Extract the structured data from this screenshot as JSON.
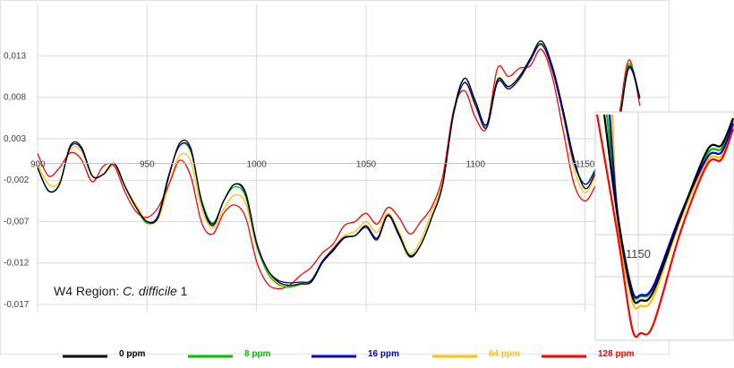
{
  "chart_data": {
    "type": "line",
    "annotation": {
      "prefix": "W4 Region: ",
      "species": "C. difficile",
      "suffix": " 1"
    },
    "xlim": [
      900,
      1180
    ],
    "ylim": [
      -0.017,
      0.0165
    ],
    "x_ticks": [
      900,
      950,
      1000,
      1050,
      1100,
      1150
    ],
    "y_ticks": [
      {
        "value": 0.013,
        "label": "0,013"
      },
      {
        "value": 0.008,
        "label": "0,008"
      },
      {
        "value": 0.003,
        "label": "0,003"
      },
      {
        "value": -0.002,
        "label": "-0,002"
      },
      {
        "value": -0.007,
        "label": "-0,007"
      },
      {
        "value": -0.012,
        "label": "-0,012"
      },
      {
        "value": -0.017,
        "label": "-0,017"
      }
    ],
    "grid": true,
    "legend_position": "bottom",
    "x": [
      900,
      905,
      910,
      915,
      920,
      925,
      930,
      935,
      940,
      945,
      950,
      955,
      960,
      965,
      970,
      975,
      980,
      985,
      990,
      995,
      1000,
      1005,
      1010,
      1015,
      1020,
      1025,
      1030,
      1035,
      1040,
      1045,
      1050,
      1055,
      1060,
      1065,
      1070,
      1075,
      1080,
      1085,
      1090,
      1095,
      1100,
      1105,
      1110,
      1115,
      1120,
      1125,
      1130,
      1135,
      1140,
      1145,
      1150,
      1155,
      1160,
      1165,
      1170,
      1175
    ],
    "series": [
      {
        "name": "0 ppm",
        "color": "#000000",
        "values": [
          -0.0005,
          -0.0033,
          -0.0025,
          0.0022,
          0.002,
          -0.0015,
          -0.0013,
          0.0,
          -0.0028,
          -0.0053,
          -0.007,
          -0.0065,
          -0.0015,
          0.0025,
          0.0018,
          -0.0048,
          -0.0075,
          -0.0045,
          -0.0025,
          -0.0035,
          -0.0095,
          -0.0128,
          -0.0143,
          -0.0147,
          -0.0145,
          -0.0143,
          -0.012,
          -0.0105,
          -0.009,
          -0.0087,
          -0.0075,
          -0.009,
          -0.0062,
          -0.0085,
          -0.0112,
          -0.0098,
          -0.0065,
          -0.0025,
          0.0062,
          0.0103,
          0.0075,
          0.0047,
          0.0101,
          0.0093,
          0.0105,
          0.0127,
          0.0148,
          0.0118,
          0.0065,
          0.0005,
          -0.003,
          -0.001,
          0.0015,
          0.004,
          0.0117,
          0.008
        ]
      },
      {
        "name": "8 ppm",
        "color": "#00c000",
        "values": [
          -0.0005,
          -0.0033,
          -0.0025,
          0.002,
          0.0018,
          -0.0015,
          -0.0013,
          0.0,
          -0.0028,
          -0.0053,
          -0.0072,
          -0.0063,
          -0.0013,
          0.0022,
          0.0014,
          -0.0045,
          -0.0072,
          -0.0045,
          -0.0028,
          -0.004,
          -0.0098,
          -0.0132,
          -0.0146,
          -0.0149,
          -0.0146,
          -0.0142,
          -0.0118,
          -0.0105,
          -0.009,
          -0.0087,
          -0.0077,
          -0.0092,
          -0.0063,
          -0.0087,
          -0.0113,
          -0.0098,
          -0.0065,
          -0.0025,
          0.0063,
          0.0103,
          0.0073,
          0.0045,
          0.01,
          0.009,
          0.0103,
          0.0125,
          0.0145,
          0.0115,
          0.0063,
          0.0003,
          -0.0025,
          -0.0005,
          0.0017,
          0.0043,
          0.012,
          0.008
        ]
      },
      {
        "name": "16 ppm",
        "color": "#0000cc",
        "values": [
          -0.0005,
          -0.0033,
          -0.0025,
          0.002,
          0.0018,
          -0.0015,
          -0.0013,
          0.0,
          -0.0028,
          -0.0053,
          -0.007,
          -0.0063,
          -0.0013,
          0.0022,
          0.0016,
          -0.0047,
          -0.0073,
          -0.0045,
          -0.0025,
          -0.0037,
          -0.0096,
          -0.0128,
          -0.0141,
          -0.0144,
          -0.0143,
          -0.0141,
          -0.0118,
          -0.0103,
          -0.0089,
          -0.0087,
          -0.0077,
          -0.0092,
          -0.0063,
          -0.0087,
          -0.0111,
          -0.0098,
          -0.0065,
          -0.0025,
          0.006,
          0.0098,
          0.007,
          0.0043,
          0.0098,
          0.009,
          0.0102,
          0.0124,
          0.0144,
          0.0113,
          0.006,
          0.0,
          -0.0025,
          -0.0007,
          0.0017,
          0.0042,
          0.0115,
          0.0078
        ]
      },
      {
        "name": "64 ppm",
        "color": "#ffc000",
        "values": [
          0.0,
          -0.0025,
          -0.0022,
          0.0017,
          0.0015,
          -0.0015,
          -0.0013,
          -0.0003,
          -0.0028,
          -0.005,
          -0.007,
          -0.0067,
          -0.0025,
          0.001,
          0.0002,
          -0.0055,
          -0.0078,
          -0.0055,
          -0.0038,
          -0.0048,
          -0.01,
          -0.013,
          -0.0144,
          -0.0147,
          -0.0145,
          -0.014,
          -0.0118,
          -0.0102,
          -0.0087,
          -0.0082,
          -0.007,
          -0.0083,
          -0.006,
          -0.0082,
          -0.0109,
          -0.0092,
          -0.0058,
          -0.0022,
          0.006,
          0.0097,
          0.0068,
          0.0045,
          0.0102,
          0.0092,
          0.0105,
          0.0125,
          0.0143,
          0.0115,
          0.0058,
          -0.0007,
          -0.0035,
          -0.0013,
          0.0012,
          0.0045,
          0.012,
          0.0078
        ]
      },
      {
        "name": "128 ppm",
        "color": "#ff0000",
        "values": [
          0.0012,
          -0.0015,
          -0.0005,
          0.0013,
          0.0005,
          -0.0022,
          -0.0003,
          -0.0003,
          -0.0035,
          -0.0058,
          -0.0065,
          -0.0053,
          -0.0025,
          0.0004,
          -0.0016,
          -0.0072,
          -0.0085,
          -0.006,
          -0.005,
          -0.0065,
          -0.0118,
          -0.0145,
          -0.0151,
          -0.0147,
          -0.0135,
          -0.0125,
          -0.0108,
          -0.0097,
          -0.0075,
          -0.007,
          -0.006,
          -0.0073,
          -0.0053,
          -0.0065,
          -0.0085,
          -0.007,
          -0.0052,
          -0.0015,
          0.0065,
          0.0088,
          0.0055,
          0.0043,
          0.0115,
          0.0105,
          0.0115,
          0.0118,
          0.0138,
          0.0105,
          0.004,
          -0.0025,
          -0.0045,
          -0.0025,
          0.0008,
          0.005,
          0.0125,
          0.007
        ]
      }
    ],
    "inset": {
      "description_x_tick": "1150",
      "min_values": [
        {
          "name": "0 ppm",
          "value": -0.0128
        },
        {
          "name": "8 ppm",
          "value": -0.0125
        },
        {
          "name": "16 ppm",
          "value": -0.0124
        },
        {
          "name": "64 ppm",
          "value": -0.0132
        },
        {
          "name": "128 ppm",
          "value": -0.0152
        }
      ]
    }
  }
}
